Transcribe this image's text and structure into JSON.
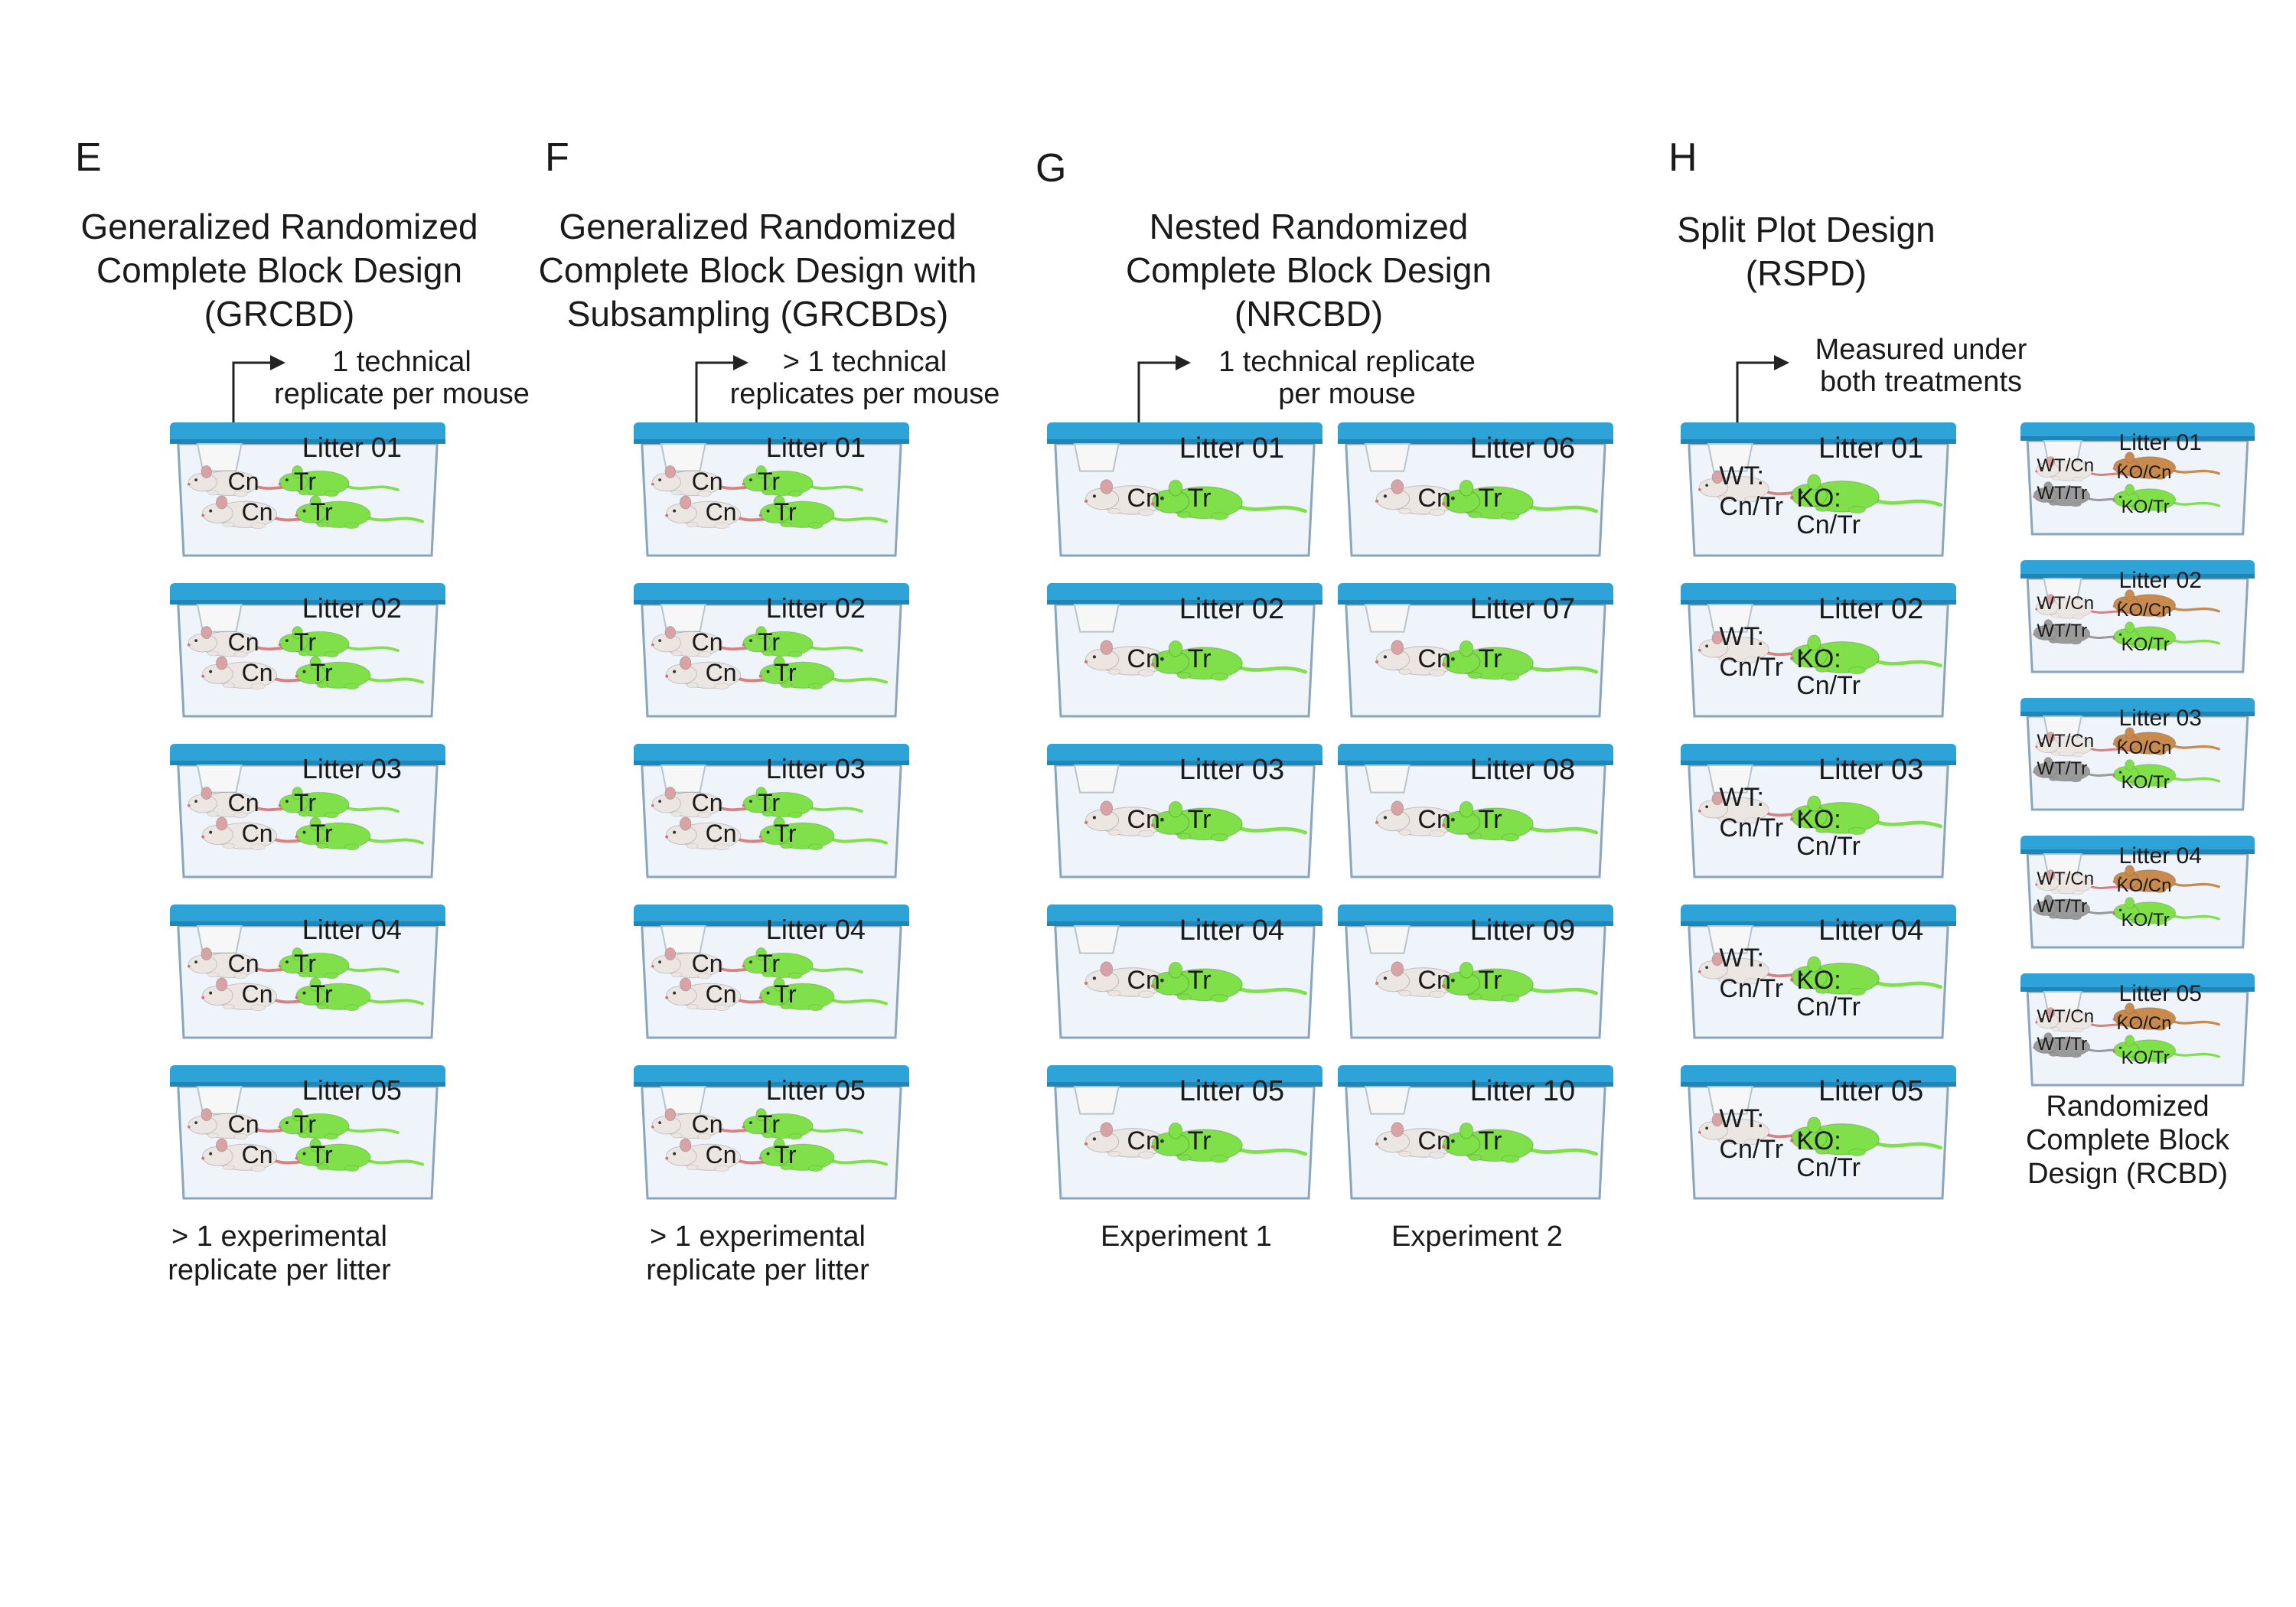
{
  "panels": [
    {
      "letter": "E",
      "title_lines": [
        "Generalized Randomized",
        "Complete Block Design",
        "(GRCBD)"
      ],
      "note_lines": [
        "1 technical",
        "replicate per mouse"
      ],
      "cages": [
        {
          "litter": "Litter 01",
          "labels": [
            "Cn",
            "Tr",
            "Cn",
            "Tr"
          ]
        },
        {
          "litter": "Litter 02",
          "labels": [
            "Cn",
            "Tr",
            "Cn",
            "Tr"
          ]
        },
        {
          "litter": "Litter 03",
          "labels": [
            "Cn",
            "Tr",
            "Cn",
            "Tr"
          ]
        },
        {
          "litter": "Litter 04",
          "labels": [
            "Cn",
            "Tr",
            "Cn",
            "Tr"
          ]
        },
        {
          "litter": "Litter 05",
          "labels": [
            "Cn",
            "Tr",
            "Cn",
            "Tr"
          ]
        }
      ],
      "caption_lines": [
        "> 1 experimental",
        "replicate per litter"
      ]
    },
    {
      "letter": "F",
      "title_lines": [
        "Generalized Randomized",
        "Complete Block Design with",
        "Subsampling (GRCBDs)"
      ],
      "note_lines": [
        "> 1 technical",
        "replicates per mouse"
      ],
      "cages": [
        {
          "litter": "Litter 01",
          "labels": [
            "Cn",
            "Tr",
            "Cn",
            "Tr"
          ]
        },
        {
          "litter": "Litter 02",
          "labels": [
            "Cn",
            "Tr",
            "Cn",
            "Tr"
          ]
        },
        {
          "litter": "Litter 03",
          "labels": [
            "Cn",
            "Tr",
            "Cn",
            "Tr"
          ]
        },
        {
          "litter": "Litter 04",
          "labels": [
            "Cn",
            "Tr",
            "Cn",
            "Tr"
          ]
        },
        {
          "litter": "Litter 05",
          "labels": [
            "Cn",
            "Tr",
            "Cn",
            "Tr"
          ]
        }
      ],
      "caption_lines": [
        "> 1 experimental",
        "replicate per litter"
      ]
    },
    {
      "letter": "G",
      "title_lines": [
        "Nested Randomized",
        "Complete Block Design",
        "(NRCBD)"
      ],
      "note_lines": [
        "1 technical replicate",
        "per mouse"
      ],
      "experiments": [
        {
          "label": "Experiment 1",
          "cages": [
            {
              "litter": "Litter 01",
              "labels": [
                "Cn",
                "Tr"
              ]
            },
            {
              "litter": "Litter 02",
              "labels": [
                "Cn",
                "Tr"
              ]
            },
            {
              "litter": "Litter 03",
              "labels": [
                "Cn",
                "Tr"
              ]
            },
            {
              "litter": "Litter 04",
              "labels": [
                "Cn",
                "Tr"
              ]
            },
            {
              "litter": "Litter 05",
              "labels": [
                "Cn",
                "Tr"
              ]
            }
          ]
        },
        {
          "label": "Experiment 2",
          "cages": [
            {
              "litter": "Litter 06",
              "labels": [
                "Cn",
                "Tr"
              ]
            },
            {
              "litter": "Litter 07",
              "labels": [
                "Cn",
                "Tr"
              ]
            },
            {
              "litter": "Litter 08",
              "labels": [
                "Cn",
                "Tr"
              ]
            },
            {
              "litter": "Litter 09",
              "labels": [
                "Cn",
                "Tr"
              ]
            },
            {
              "litter": "Litter 10",
              "labels": [
                "Cn",
                "Tr"
              ]
            }
          ]
        }
      ]
    },
    {
      "letter": "H",
      "title_lines": [
        "Split Plot Design",
        "(RSPD)"
      ],
      "note_lines": [
        "Measured under",
        "both treatments"
      ],
      "cages": [
        {
          "litter": "Litter 01",
          "labels": [
            "WT:",
            "Cn/Tr",
            "KO:",
            "Cn/Tr"
          ]
        },
        {
          "litter": "Litter 02",
          "labels": [
            "WT:",
            "Cn/Tr",
            "KO:",
            "Cn/Tr"
          ]
        },
        {
          "litter": "Litter 03",
          "labels": [
            "WT:",
            "Cn/Tr",
            "KO:",
            "Cn/Tr"
          ]
        },
        {
          "litter": "Litter 04",
          "labels": [
            "WT:",
            "Cn/Tr",
            "KO:",
            "Cn/Tr"
          ]
        },
        {
          "litter": "Litter 05",
          "labels": [
            "WT:",
            "Cn/Tr",
            "KO:",
            "Cn/Tr"
          ]
        }
      ],
      "rcbd_cages": [
        {
          "litter": "Litter 01",
          "labels": [
            "WT/Cn",
            "KO/Cn",
            "WT/Tr",
            "KO/Tr"
          ]
        },
        {
          "litter": "Litter 02",
          "labels": [
            "WT/Cn",
            "KO/Cn",
            "WT/Tr",
            "KO/Tr"
          ]
        },
        {
          "litter": "Litter 03",
          "labels": [
            "WT/Cn",
            "KO/Cn",
            "WT/Tr",
            "KO/Tr"
          ]
        },
        {
          "litter": "Litter 04",
          "labels": [
            "WT/Cn",
            "KO/Cn",
            "WT/Tr",
            "KO/Tr"
          ]
        },
        {
          "litter": "Litter 05",
          "labels": [
            "WT/Cn",
            "KO/Cn",
            "WT/Tr",
            "KO/Tr"
          ]
        }
      ],
      "rcbd_caption_lines": [
        "Randomized",
        "Complete Block",
        "Design (RCBD)"
      ]
    }
  ],
  "colors": {
    "lid": "#2ea3d8",
    "lid_dark": "#1f86b8",
    "box_fill": "#eef4fa",
    "box_stroke": "#8aa6bd",
    "mouse_white": "#ece6e3",
    "mouse_green": "#7fe04a",
    "mouse_gray": "#9a9a9a",
    "mouse_orange": "#c98a4e",
    "ear_pink": "#d9a3a6",
    "tail_pink": "#d98080"
  }
}
